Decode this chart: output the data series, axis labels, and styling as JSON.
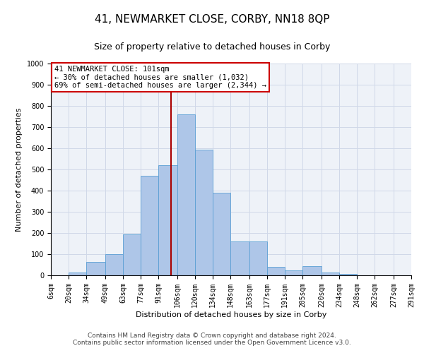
{
  "title": "41, NEWMARKET CLOSE, CORBY, NN18 8QP",
  "subtitle": "Size of property relative to detached houses in Corby",
  "xlabel": "Distribution of detached houses by size in Corby",
  "ylabel": "Number of detached properties",
  "footer_line1": "Contains HM Land Registry data © Crown copyright and database right 2024.",
  "footer_line2": "Contains public sector information licensed under the Open Government Licence v3.0.",
  "annotation_line1": "41 NEWMARKET CLOSE: 101sqm",
  "annotation_line2": "← 30% of detached houses are smaller (1,032)",
  "annotation_line3": "69% of semi-detached houses are larger (2,344) →",
  "bin_labels": [
    "6sqm",
    "20sqm",
    "34sqm",
    "49sqm",
    "63sqm",
    "77sqm",
    "91sqm",
    "106sqm",
    "120sqm",
    "134sqm",
    "148sqm",
    "163sqm",
    "177sqm",
    "191sqm",
    "205sqm",
    "220sqm",
    "234sqm",
    "248sqm",
    "262sqm",
    "277sqm",
    "291sqm"
  ],
  "bar_values": [
    0,
    12,
    62,
    100,
    193,
    470,
    520,
    760,
    595,
    390,
    160,
    160,
    40,
    25,
    45,
    12,
    6,
    0,
    0,
    0
  ],
  "bar_color": "#aec6e8",
  "bar_edge_color": "#5a9fd4",
  "vline_x": 101,
  "bin_edges": [
    6,
    20,
    34,
    49,
    63,
    77,
    91,
    106,
    120,
    134,
    148,
    163,
    177,
    191,
    205,
    220,
    234,
    248,
    262,
    277,
    291
  ],
  "ylim": [
    0,
    1000
  ],
  "yticks": [
    0,
    100,
    200,
    300,
    400,
    500,
    600,
    700,
    800,
    900,
    1000
  ],
  "grid_color": "#d0d8e8",
  "background_color": "#eef2f8",
  "annotation_box_color": "#ffffff",
  "annotation_box_edge": "#cc0000",
  "vline_color": "#aa0000",
  "title_fontsize": 11,
  "subtitle_fontsize": 9,
  "axis_label_fontsize": 8,
  "tick_fontsize": 7,
  "annotation_fontsize": 7.5,
  "footer_fontsize": 6.5
}
